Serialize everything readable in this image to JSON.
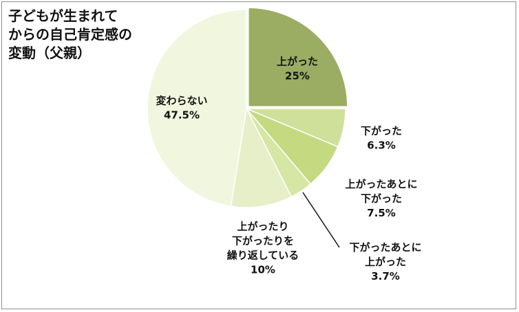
{
  "title_lines": [
    "子どもが生まれて",
    "からの自己肯定感の",
    "変動（父親）"
  ],
  "chart_data": {
    "type": "pie",
    "title": "子どもが生まれてからの自己肯定感の変動（父親）",
    "start_angle_deg": 0,
    "direction": "clockwise",
    "slices": [
      {
        "label_lines": [
          "上がった"
        ],
        "value": 25,
        "value_label": "25%",
        "color": "#9aad62",
        "exploded": true
      },
      {
        "label_lines": [
          "下がった"
        ],
        "value": 6.3,
        "value_label": "6.3%",
        "color": "#cfe09a"
      },
      {
        "label_lines": [
          "上がったあとに",
          "下がった"
        ],
        "value": 7.5,
        "value_label": "7.5%",
        "color": "#c5da80"
      },
      {
        "label_lines": [
          "下がったあとに",
          "上がった"
        ],
        "value": 3.7,
        "value_label": "3.7%",
        "color": "#d6e6a4"
      },
      {
        "label_lines": [
          "上がったり",
          "下がったりを",
          "繰り返している"
        ],
        "value": 10,
        "value_label": "10%",
        "color": "#e6efc8"
      },
      {
        "label_lines": [
          "変わらない"
        ],
        "value": 47.5,
        "value_label": "47.5%",
        "color": "#f1f6df"
      }
    ]
  }
}
